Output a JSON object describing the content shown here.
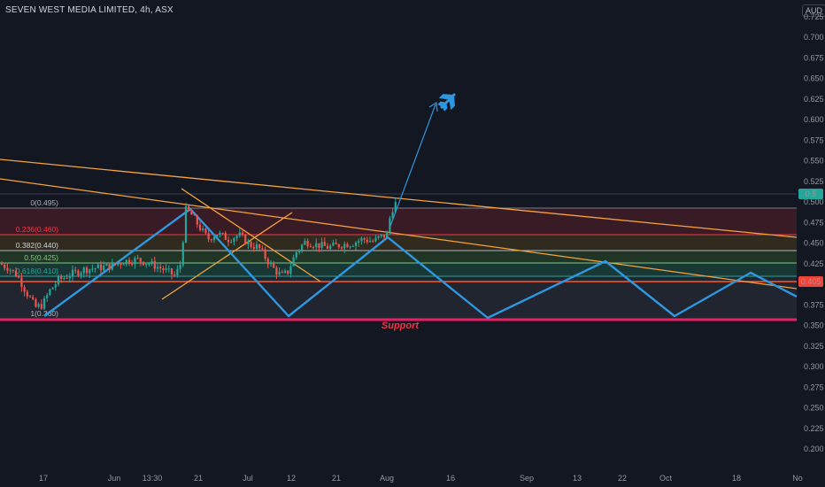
{
  "header": {
    "title": "SEVEN WEST MEDIA LIMITED, 4h, ASX",
    "currency": "AUD"
  },
  "colors": {
    "background": "#131722",
    "candle_up": "#26a69a",
    "candle_down": "#ef5350",
    "trendline": "#f7a33c",
    "zigzag": "#2f96e0",
    "support": "#e91e63",
    "resistance_line": "#f44336"
  },
  "annotations": {
    "support_label": "Support",
    "arrow_icon": "airplane-icon"
  },
  "chart_data": {
    "type": "candlestick",
    "title": "SEVEN WEST MEDIA LIMITED, 4h, ASX",
    "y_unit": "AUD",
    "ylim": [
      0.175,
      0.735
    ],
    "y_ticks": [
      "0.725",
      "0.700",
      "0.675",
      "0.650",
      "0.625",
      "0.600",
      "0.575",
      "0.550",
      "0.525",
      "0.500",
      "0.475",
      "0.450",
      "0.425",
      "0.400",
      "0.375",
      "0.350",
      "0.325",
      "0.300",
      "0.275",
      "0.250",
      "0.225",
      "0.200"
    ],
    "x_tick_labels": [
      "17",
      "Jun",
      "13:30",
      "21",
      "Jul",
      "12",
      "21",
      "Aug",
      "16",
      "Sep",
      "13",
      "22",
      "Oct",
      "18",
      "No"
    ],
    "last_price_label": "0.5",
    "level_label": "0.405",
    "fib_levels": [
      {
        "label": "0(0.495)",
        "value": 0.495,
        "color": "#9598a1"
      },
      {
        "label": "0.236(0.460)",
        "value": 0.46,
        "color": "#f23645"
      },
      {
        "label": "0.382(0.440)",
        "value": 0.44,
        "color": "#cfd2d8"
      },
      {
        "label": "0.5(0.425)",
        "value": 0.425,
        "color": "#81c784"
      },
      {
        "label": "0.618(0.410)",
        "value": 0.41,
        "color": "#26a69a"
      },
      {
        "label": "1(0.360)",
        "value": 0.36,
        "color": "#9598a1"
      }
    ],
    "support_level": 0.358,
    "grid": false,
    "legend": "none"
  }
}
